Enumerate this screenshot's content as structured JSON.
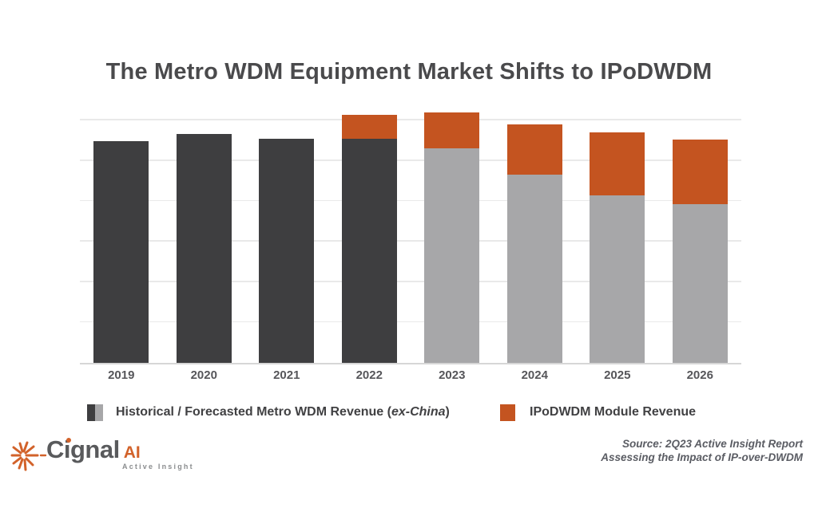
{
  "header": {
    "title": "The Metro WDM Equipment Market Shifts to IPoDWDM"
  },
  "chart_data": {
    "type": "bar",
    "stacked": true,
    "title": "The Metro WDM Equipment Market Shifts to IPoDWDM",
    "categories": [
      "2019",
      "2020",
      "2021",
      "2022",
      "2023",
      "2024",
      "2025",
      "2026"
    ],
    "series": [
      {
        "name": "Historical / Forecasted Metro WDM Revenue (ex-China)",
        "values": [
          5.48,
          5.66,
          5.54,
          5.55,
          5.3,
          4.66,
          4.14,
          3.92
        ],
        "styles": [
          "historical",
          "historical",
          "historical",
          "historical",
          "forecast",
          "forecast",
          "forecast",
          "forecast"
        ]
      },
      {
        "name": "IPoDWDM Module Revenue",
        "values": [
          0,
          0,
          0,
          0.58,
          0.89,
          1.24,
          1.56,
          1.6
        ]
      }
    ],
    "xlabel": "",
    "ylabel": "",
    "y_axis_labels_shown": false,
    "units": "relative revenue units (1 horizontal gridline = 1 unit; y-axis unlabeled in source image)",
    "ylim": [
      0,
      6.25
    ],
    "gridline_step": 1,
    "grid": "horizontal gridlines only",
    "legend_position": "bottom"
  },
  "legend": {
    "metro": {
      "prefix": "Historical / Forecasted Metro WDM Revenue (",
      "italic": "ex-China",
      "suffix": ")"
    },
    "ipodwdm": {
      "label": "IPoDWDM Module Revenue"
    }
  },
  "footer": {
    "logo": {
      "word": "Cignal",
      "ai": "AI",
      "tagline": "Active Insight"
    },
    "source": {
      "line1": "Source: 2Q23 Active Insight Report",
      "line2": "Assessing the Impact of IP-over-DWDM"
    }
  },
  "colors": {
    "historical_bar": "#3e3e40",
    "forecast_bar": "#a7a7a9",
    "ipodwdm_bar": "#c45420",
    "gridline": "#e9e9e9",
    "axis_line": "#d6d6d6",
    "title_text": "#4a4a4c",
    "axis_label_text": "#56565a",
    "legend_text": "#414143",
    "source_text": "#5a5c63",
    "logo_gray": "#595a5c",
    "logo_orange": "#d2622a"
  }
}
